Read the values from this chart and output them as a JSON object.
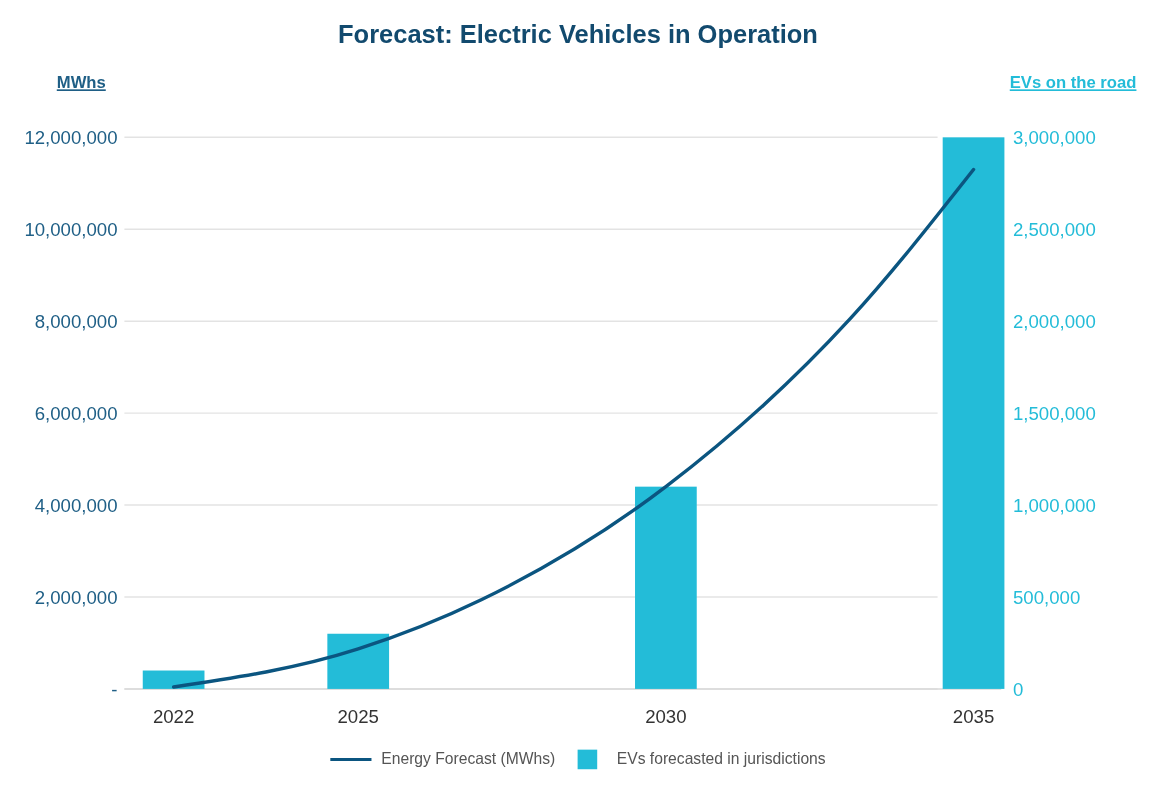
{
  "chart_data": {
    "type": "bar",
    "title": "Forecast: Electric Vehicles in Operation",
    "ylabel": "MWhs",
    "y2label": "EVs on the road",
    "x": [
      2022,
      2025,
      2030,
      2035
    ],
    "xlim": [
      2021.2,
      2035.45
    ],
    "xticks": [
      2022,
      2025,
      2030,
      2035
    ],
    "ylim": [
      0,
      12000000
    ],
    "yticks": [
      {
        "value": 0,
        "label": "-"
      },
      {
        "value": 2000000,
        "label": "2,000,000"
      },
      {
        "value": 4000000,
        "label": "4,000,000"
      },
      {
        "value": 6000000,
        "label": "6,000,000"
      },
      {
        "value": 8000000,
        "label": "8,000,000"
      },
      {
        "value": 10000000,
        "label": "10,000,000"
      },
      {
        "value": 12000000,
        "label": "12,000,000"
      }
    ],
    "y2lim": [
      0,
      3000000
    ],
    "y2ticks": [
      0,
      {
        "value": 500000,
        "label": "500,000"
      },
      {
        "value": 1000000,
        "label": "1,000,000"
      },
      {
        "value": 1500000,
        "label": "1,500,000"
      },
      {
        "value": 2000000,
        "label": "2,000,000"
      },
      {
        "value": 2500000,
        "label": "2,500,000"
      },
      {
        "value": 3000000,
        "label": "3,000,000"
      }
    ],
    "grid": "y",
    "legend": "bottom",
    "series": [
      {
        "name": "Energy Forecast (MWhs)",
        "type": "line",
        "color": "#0b5580",
        "x": [
          2022,
          2025,
          2027,
          2030,
          2033,
          2035
        ],
        "values": [
          40000,
          870000,
          1940000,
          4400000,
          8060000,
          11300000
        ]
      },
      {
        "name": "EVs forecasted in jurisdictions",
        "axis": "y2",
        "color": "#23bcd8",
        "values": [
          100000,
          300000,
          1100000,
          3000000
        ]
      }
    ]
  }
}
